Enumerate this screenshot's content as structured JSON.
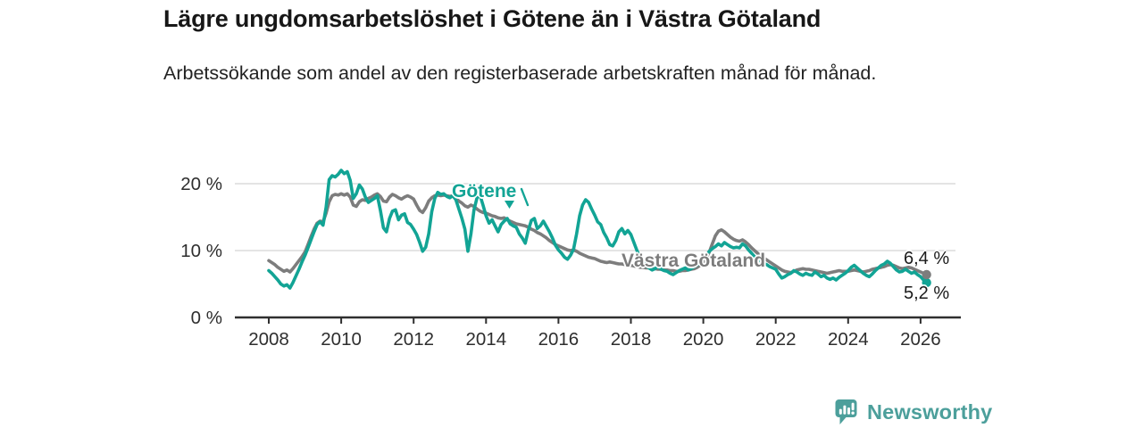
{
  "chart_data": {
    "type": "line",
    "title": "Lägre ungdomsarbetslöshet i Götene än i Västra Götaland",
    "subtitle": "Arbetssökande som andel av den registerbaserade arbetskraften månad för månad.",
    "x_unit": "month",
    "x_start": "2008-01",
    "x_end": "2026-03",
    "xticks": [
      2008,
      2010,
      2012,
      2014,
      2016,
      2018,
      2020,
      2022,
      2024,
      2026
    ],
    "ylim": [
      0,
      23
    ],
    "yticks": [
      0,
      10,
      20
    ],
    "ytick_labels": [
      "0 %",
      "10 %",
      "20 %"
    ],
    "grid": "horizontal",
    "legend": "inline-labels",
    "colors": {
      "gotene": "#12a495",
      "vastra_gotaland": "#7d7d7d",
      "grid": "#dcdcdc",
      "axis": "#2f2f2f",
      "tick_text": "#2e2e2e"
    },
    "series": [
      {
        "name": "Götene",
        "color": "#12a495",
        "end_label": "5,2 %",
        "last_value": 5.2,
        "values": [
          7,
          6.6,
          6.1,
          5.6,
          5,
          4.7,
          4.9,
          4.4,
          5.2,
          6.2,
          7.2,
          8.3,
          9.3,
          10.4,
          11.6,
          12.8,
          13.9,
          14.3,
          13.8,
          16.5,
          20.6,
          21.2,
          21,
          21.4,
          22,
          21.5,
          21.8,
          20.5,
          17.8,
          18.5,
          19.8,
          19.2,
          18,
          17.2,
          17.5,
          17.8,
          18.2,
          16,
          13.4,
          12.8,
          14.8,
          15.9,
          16.1,
          14.6,
          15.3,
          15.5,
          14.2,
          13.9,
          13.2,
          12.4,
          11.2,
          9.9,
          10.5,
          12.5,
          15.8,
          17.8,
          18.7,
          18.4,
          18.5,
          18.1,
          17.9,
          18.2,
          17.6,
          16.2,
          14.8,
          13.2,
          9.9,
          12.5,
          16.1,
          17.9,
          18.3,
          16.8,
          15.2,
          14.1,
          14.6,
          13.7,
          12.8,
          13.9,
          14.4,
          14.8,
          14,
          13.7,
          13.5,
          12.5,
          11.9,
          11.1,
          13,
          14.5,
          14.8,
          13.3,
          13.7,
          14.4,
          13.6,
          12.8,
          11.9,
          10.8,
          10.1,
          9.6,
          9,
          8.7,
          9.3,
          10.2,
          12.5,
          15.2,
          16.8,
          17.6,
          17.2,
          16.2,
          15.3,
          14.3,
          13.9,
          12.7,
          11.9,
          10.9,
          10.7,
          11.5,
          12.8,
          13.3,
          12.5,
          13,
          12.4,
          11.2,
          10,
          9,
          8.3,
          7.8,
          7.4,
          7.1,
          7.3,
          7.6,
          7.2,
          7,
          6.9,
          6.6,
          6.4,
          6.7,
          7,
          7.2,
          7.4,
          7.1,
          7.3,
          7.6,
          7.9,
          8.3,
          8.8,
          9.4,
          9.9,
          10.3,
          10.6,
          11,
          10.7,
          11.2,
          10.9,
          10.6,
          10.4,
          10.5,
          10.4,
          11,
          10.7,
          10.1,
          9.6,
          9.1,
          8.8,
          8.4,
          8.1,
          7.9,
          7.6,
          7.4,
          7.2,
          6.5,
          5.9,
          6.1,
          6.4,
          6.6,
          7,
          6.8,
          6.5,
          6.3,
          6.6,
          6.4,
          6.3,
          6.8,
          6.5,
          6.1,
          6.3,
          5.9,
          5.7,
          5.9,
          5.6,
          6,
          6.3,
          6.6,
          7,
          7.5,
          7.8,
          7.4,
          7,
          6.6,
          6.3,
          6.1,
          6.5,
          7,
          7.4,
          7.8,
          8,
          8.4,
          8.1,
          7.6,
          7.1,
          6.8,
          6.9,
          7.2,
          6.9,
          6.6,
          6.8,
          6.4,
          6.1,
          5.6,
          5.2
        ]
      },
      {
        "name": "Västra Götaland",
        "color": "#7d7d7d",
        "end_label": "6,4 %",
        "last_value": 6.4,
        "values": [
          8.5,
          8.2,
          7.9,
          7.5,
          7.2,
          6.9,
          7.1,
          6.8,
          7.3,
          7.9,
          8.5,
          9.1,
          9.8,
          10.9,
          12.1,
          13.2,
          14.1,
          14.4,
          14.3,
          15.6,
          17.3,
          18.2,
          18.4,
          18.3,
          18.5,
          18.3,
          18.5,
          18,
          16.8,
          16.6,
          17.3,
          17.6,
          17.5,
          17.8,
          18,
          18.3,
          18.5,
          18.1,
          17.4,
          17.3,
          18,
          18.4,
          18.2,
          17.9,
          17.7,
          18,
          18.2,
          18,
          17.7,
          16.8,
          16,
          15.7,
          16.4,
          17.4,
          17.9,
          18.2,
          18.3,
          18.2,
          18.3,
          18.2,
          18.1,
          18.2,
          17.8,
          17.4,
          17.1,
          16.7,
          16.5,
          16.8,
          16.6,
          16.2,
          15.9,
          15.7,
          15.6,
          15.4,
          15.2,
          15.1,
          14.9,
          14.8,
          14.9,
          14.6,
          14.4,
          14.2,
          14,
          13.9,
          13.8,
          13.7,
          13.5,
          13.2,
          13,
          12.7,
          12.5,
          12.2,
          11.9,
          11.5,
          11.2,
          10.9,
          10.7,
          10.5,
          10.3,
          10.1,
          10,
          10.1,
          9.9,
          9.6,
          9.4,
          9.2,
          9,
          8.9,
          8.8,
          8.6,
          8.4,
          8.3,
          8.2,
          8.3,
          8.2,
          8.1,
          8,
          8,
          7.9,
          7.9,
          7.8,
          7.7,
          7.6,
          7.5,
          7.5,
          7.4,
          7.4,
          7.3,
          7.3,
          7.2,
          7.2,
          7.1,
          7.1,
          7,
          7,
          6.9,
          6.9,
          7,
          7,
          7.1,
          7.2,
          7.3,
          7.5,
          7.8,
          8.3,
          8.9,
          9.8,
          11,
          12.2,
          12.9,
          13.1,
          12.8,
          12.4,
          12,
          11.7,
          11.5,
          11.4,
          11.6,
          11.3,
          10.9,
          10.4,
          10,
          9.6,
          9.2,
          8.9,
          8.6,
          8.3,
          8,
          7.7,
          7.4,
          7.1,
          6.9,
          6.8,
          6.7,
          6.9,
          7.1,
          7.2,
          7.3,
          7.2,
          7.2,
          7.1,
          7,
          6.9,
          6.8,
          6.7,
          6.6,
          6.7,
          6.8,
          6.9,
          7,
          6.9,
          6.9,
          6.9,
          7,
          7.1,
          7,
          6.9,
          6.8,
          6.9,
          7,
          7.2,
          7.3,
          7.4,
          7.5,
          7.6,
          7.8,
          7.9,
          7.8,
          7.6,
          7.4,
          7.3,
          7.4,
          7.5,
          7.4,
          7.2,
          7,
          6.8,
          6.6,
          6.4
        ]
      }
    ]
  },
  "footer": {
    "brand": "Newsworthy",
    "brand_color": "#4c9f9b",
    "logo_icon": "bar-chart-speech-bubble"
  }
}
